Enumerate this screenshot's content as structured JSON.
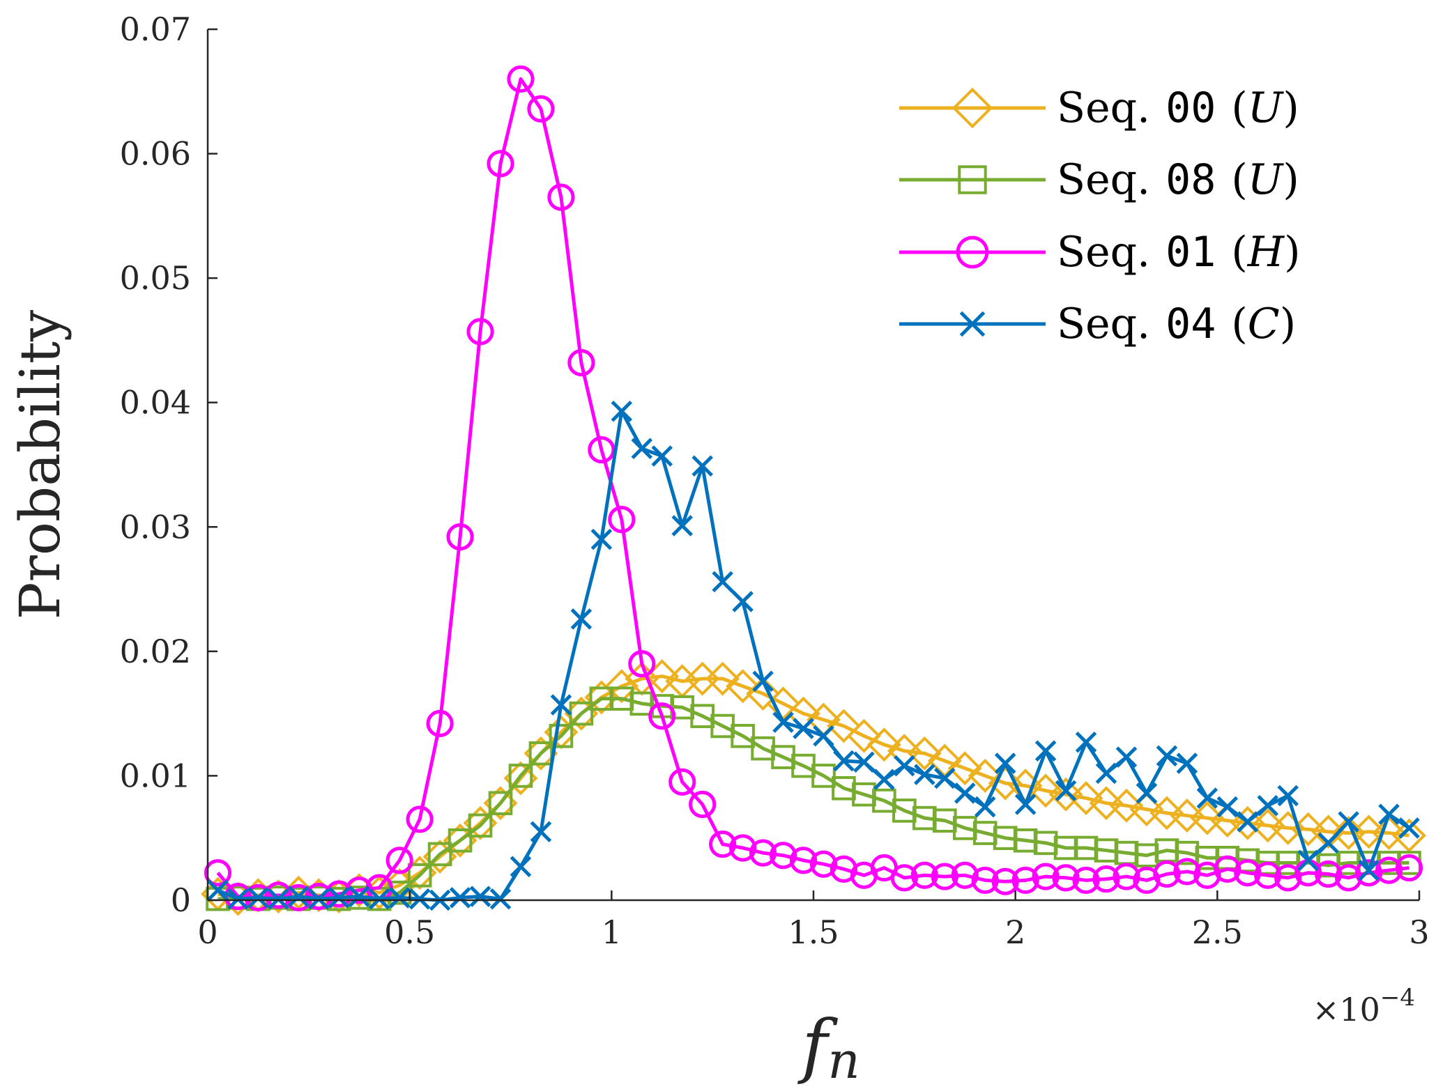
{
  "chart_data": {
    "type": "line",
    "xlabel": "f",
    "xlabel_subscript": "n",
    "ylabel": "Probability",
    "x_multiplier": "×10",
    "x_multiplier_exponent": "−4",
    "xlim": [
      0,
      3
    ],
    "ylim": [
      0,
      0.07
    ],
    "xticks": [
      "0",
      "0.5",
      "1",
      "1.5",
      "2",
      "2.5",
      "3"
    ],
    "yticks": [
      "0",
      "0.01",
      "0.02",
      "0.03",
      "0.04",
      "0.05",
      "0.06",
      "0.07"
    ],
    "legend_position": "top-right",
    "x": [
      0.025,
      0.075,
      0.125,
      0.175,
      0.225,
      0.275,
      0.325,
      0.375,
      0.425,
      0.475,
      0.525,
      0.575,
      0.625,
      0.675,
      0.725,
      0.775,
      0.825,
      0.875,
      0.925,
      0.975,
      1.025,
      1.075,
      1.125,
      1.175,
      1.225,
      1.275,
      1.325,
      1.375,
      1.425,
      1.475,
      1.525,
      1.575,
      1.625,
      1.675,
      1.725,
      1.775,
      1.825,
      1.875,
      1.925,
      1.975,
      2.025,
      2.075,
      2.125,
      2.175,
      2.225,
      2.275,
      2.325,
      2.375,
      2.425,
      2.475,
      2.525,
      2.575,
      2.625,
      2.675,
      2.725,
      2.775,
      2.825,
      2.875,
      2.925,
      2.975
    ],
    "series": [
      {
        "name": "Seq. 00",
        "name_prefix": "Seq.",
        "name_code": "00",
        "name_label": "U",
        "color": "#EDB120",
        "marker": "diamond",
        "values": [
          0.0005,
          0.0001,
          0.0004,
          0.0003,
          0.0006,
          0.0004,
          0.0003,
          0.0008,
          0.0006,
          0.0012,
          0.0022,
          0.0035,
          0.0048,
          0.0062,
          0.0078,
          0.0098,
          0.0118,
          0.0135,
          0.015,
          0.0163,
          0.0172,
          0.0178,
          0.018,
          0.0176,
          0.0178,
          0.0178,
          0.0172,
          0.0166,
          0.0158,
          0.015,
          0.0145,
          0.014,
          0.0132,
          0.0125,
          0.012,
          0.0118,
          0.0112,
          0.0106,
          0.01,
          0.0094,
          0.0092,
          0.0088,
          0.0085,
          0.0082,
          0.0078,
          0.0076,
          0.0073,
          0.007,
          0.0068,
          0.0066,
          0.0064,
          0.0062,
          0.006,
          0.0058,
          0.0057,
          0.0055,
          0.0054,
          0.0055,
          0.0054,
          0.0052
        ]
      },
      {
        "name": "Seq. 08",
        "name_prefix": "Seq.",
        "name_code": "08",
        "name_label": "U",
        "color": "#77AC30",
        "marker": "square",
        "values": [
          0.0001,
          0.0002,
          0.0001,
          0.0002,
          0.0001,
          0.0002,
          0.0001,
          0.0002,
          0.0001,
          0.0006,
          0.002,
          0.0037,
          0.0048,
          0.006,
          0.0078,
          0.01,
          0.0118,
          0.0132,
          0.015,
          0.0162,
          0.0162,
          0.0158,
          0.0156,
          0.0155,
          0.0148,
          0.014,
          0.0132,
          0.0122,
          0.0115,
          0.0108,
          0.01,
          0.009,
          0.0085,
          0.008,
          0.0072,
          0.0066,
          0.0064,
          0.0058,
          0.0054,
          0.005,
          0.0048,
          0.0046,
          0.0042,
          0.0042,
          0.004,
          0.0038,
          0.0036,
          0.004,
          0.0038,
          0.0034,
          0.0034,
          0.0032,
          0.003,
          0.003,
          0.003,
          0.0028,
          0.003,
          0.003,
          0.003,
          0.003
        ]
      },
      {
        "name": "Seq. 01",
        "name_prefix": "Seq.",
        "name_code": "01",
        "name_label": "H",
        "color": "#FF00FF",
        "marker": "circle",
        "values": [
          0.0022,
          0.0003,
          0.0002,
          0.0004,
          0.0002,
          0.0003,
          0.0005,
          0.0008,
          0.001,
          0.0032,
          0.0065,
          0.0142,
          0.0292,
          0.0457,
          0.0592,
          0.066,
          0.0636,
          0.0565,
          0.0432,
          0.0362,
          0.0306,
          0.019,
          0.0148,
          0.0095,
          0.0077,
          0.0045,
          0.0042,
          0.0038,
          0.0036,
          0.0032,
          0.0029,
          0.0025,
          0.002,
          0.0026,
          0.0018,
          0.002,
          0.0019,
          0.002,
          0.0016,
          0.0015,
          0.0016,
          0.0019,
          0.0018,
          0.0016,
          0.0017,
          0.0019,
          0.0016,
          0.0021,
          0.0023,
          0.002,
          0.0025,
          0.0022,
          0.002,
          0.0018,
          0.0022,
          0.0021,
          0.0018,
          0.0022,
          0.0024,
          0.0026
        ]
      },
      {
        "name": "Seq. 04",
        "name_prefix": "Seq.",
        "name_code": "04",
        "name_label": "C",
        "color": "#0072BD",
        "marker": "x",
        "values": [
          0.0008,
          0.0001,
          0.0002,
          0.0001,
          0.0003,
          0.0001,
          0.0002,
          0.0003,
          0.0001,
          0.0002,
          0.0001,
          0.0,
          0.0002,
          0.0003,
          0.0001,
          0.0027,
          0.0055,
          0.0157,
          0.0226,
          0.029,
          0.0393,
          0.0363,
          0.0357,
          0.0301,
          0.0349,
          0.0256,
          0.024,
          0.0176,
          0.0143,
          0.0138,
          0.0132,
          0.0112,
          0.0111,
          0.0097,
          0.0108,
          0.0101,
          0.0098,
          0.0086,
          0.0075,
          0.011,
          0.0077,
          0.012,
          0.0088,
          0.0127,
          0.0102,
          0.0115,
          0.0086,
          0.0116,
          0.011,
          0.0082,
          0.0075,
          0.0063,
          0.0076,
          0.0084,
          0.0032,
          0.0046,
          0.0063,
          0.0024,
          0.0069,
          0.0058
        ]
      }
    ]
  }
}
